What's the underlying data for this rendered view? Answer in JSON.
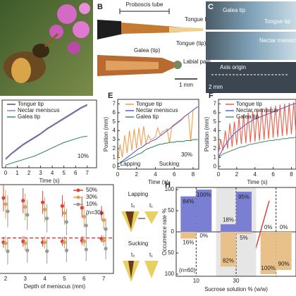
{
  "diagram_b": {
    "panel": "B",
    "proboscis": "Proboscis tube",
    "tongue_hairs": "Tongue hairs",
    "galea": "Galea (tip)",
    "tongue": "Tongue (tip)",
    "labial_palp": "Labial palp",
    "scale": "1 mm"
  },
  "images_c": {
    "panel": "C",
    "galea_tip": "Galea tip",
    "tongue_tip": "Tongue tip",
    "meniscus": "Nectar meniscus",
    "axis_origin": "Axis origin",
    "scale": "2 mm"
  },
  "diagram_g": {
    "lapping": "Lapping",
    "sucking": "Sucking",
    "t0": "t₀",
    "t1": "t₁"
  },
  "chart_data": [
    {
      "type": "line",
      "xlabel": "Time (s)",
      "annotations": [
        "10%"
      ],
      "x": [
        0,
        0.5,
        1,
        1.5,
        2,
        2.5,
        3,
        3.5,
        4,
        4.5,
        5,
        5.5,
        6,
        6.5,
        7
      ],
      "xlim": [
        -0.3,
        7.8
      ],
      "xticks": [
        0,
        1,
        2,
        3,
        4,
        5,
        6,
        7
      ],
      "ylim": [
        0,
        7.5
      ],
      "series": [
        {
          "name": "Tongue tip",
          "color": "#55506a",
          "values": [
            1.0,
            1.6,
            2.1,
            2.6,
            3.0,
            3.4,
            3.8,
            4.3,
            4.7,
            5.1,
            5.5,
            5.9,
            6.3,
            6.7,
            7.0
          ]
        },
        {
          "name": "Nectar meniscus",
          "color": "#8a7fd0",
          "values": [
            0.9,
            1.5,
            2.0,
            2.5,
            2.9,
            3.3,
            3.7,
            4.2,
            4.6,
            5.0,
            5.4,
            5.8,
            6.2,
            6.6,
            6.9
          ]
        },
        {
          "name": "Galea tip",
          "color": "#3a8a6a",
          "values": [
            0.3,
            0.5,
            0.7,
            0.9,
            1.1,
            1.3,
            1.6,
            1.9,
            2.2,
            2.5,
            2.8,
            3.0,
            3.2,
            3.4,
            3.5
          ]
        }
      ]
    },
    {
      "type": "line",
      "panel": "E",
      "xlabel": "Time (s)",
      "ylabel": "Position (mm)",
      "annotations": [
        "Lapping",
        "Sucking",
        "30%"
      ],
      "x": [
        0,
        0.25,
        0.5,
        0.75,
        1,
        1.25,
        1.5,
        1.75,
        2,
        2.25,
        2.5,
        2.75,
        3,
        3.25,
        3.5,
        3.75,
        4,
        4.25,
        4.5,
        4.75,
        5,
        5.25,
        5.5,
        5.75,
        6,
        6.25,
        6.5,
        6.75,
        7,
        7.25,
        7.5,
        7.75,
        8,
        8.25,
        8.5
      ],
      "xlim": [
        0,
        8.6
      ],
      "xticks": [
        0,
        2,
        4,
        6,
        8
      ],
      "ylim": [
        -0.3,
        7.5
      ],
      "yticks": [
        0,
        1,
        2,
        3,
        4,
        5,
        6,
        7
      ],
      "series": [
        {
          "name": "Tongue tip",
          "color": "#f0a050",
          "values": [
            0.5,
            2.5,
            1.0,
            3.5,
            1.5,
            4.0,
            1.8,
            4.2,
            2.0,
            4.3,
            2.3,
            4.5,
            2.5,
            3.5,
            3.0,
            3.1,
            3.3,
            4.3,
            3.5,
            3.9,
            4.0,
            4.2,
            2.6,
            4.5,
            4.7,
            4.9,
            5.1,
            5.3,
            5.5,
            5.7,
            5.9,
            2.8,
            6.3,
            6.5,
            6.7
          ]
        },
        {
          "name": "Nectar meniscus",
          "color": "#6a5acd",
          "values": [
            0.3,
            0.4,
            0.6,
            0.8,
            1.0,
            1.2,
            1.4,
            1.6,
            1.8,
            2.0,
            2.1,
            2.3,
            2.5,
            2.6,
            2.8,
            2.9,
            3.0,
            3.2,
            3.4,
            3.6,
            3.8,
            4.0,
            4.2,
            4.4,
            4.6,
            4.8,
            5.0,
            5.2,
            5.5,
            5.7,
            5.9,
            6.1,
            6.3,
            6.5,
            6.7
          ]
        },
        {
          "name": "Galea tip",
          "color": "#3a8a6a",
          "values": [
            0.2,
            0.4,
            0.5,
            0.6,
            0.7,
            0.9,
            1.0,
            1.1,
            1.3,
            1.4,
            1.5,
            1.7,
            1.9,
            2.0,
            2.1,
            2.2,
            2.3,
            2.4,
            2.5,
            2.5,
            2.6,
            2.6,
            2.7,
            2.7,
            2.7,
            2.8,
            2.8,
            2.8,
            2.8,
            2.9,
            2.9,
            2.9,
            3.0,
            3.0,
            3.0
          ]
        }
      ]
    },
    {
      "type": "line",
      "panel": "F",
      "xlabel": "Time (s)",
      "ylabel": "Position (mm)",
      "x": [
        0,
        0.25,
        0.5,
        0.75,
        1,
        1.25,
        1.5,
        1.75,
        2,
        2.25,
        2.5,
        2.75,
        3,
        3.25,
        3.5,
        3.75,
        4,
        4.25,
        4.5,
        4.75,
        5,
        5.25,
        5.5,
        5.75,
        6,
        6.25,
        6.5,
        6.75,
        7,
        7.25,
        7.5,
        7.75,
        8,
        8.25,
        8.5
      ],
      "xlim": [
        0,
        8.5
      ],
      "xticks": [
        0,
        2,
        4,
        6,
        8
      ],
      "ylim": [
        -0.3,
        7.5
      ],
      "yticks": [
        0,
        1,
        2,
        3,
        4,
        5,
        6,
        7
      ],
      "series": [
        {
          "name": "Tongue tip",
          "color": "#e8604c",
          "values": [
            1.5,
            3.0,
            1.8,
            4.0,
            2.0,
            4.8,
            2.2,
            5.0,
            2.4,
            5.5,
            2.5,
            5.8,
            2.6,
            6.0,
            2.7,
            6.2,
            2.8,
            6.3,
            2.9,
            6.5,
            3.0,
            6.6,
            3.1,
            6.7,
            3.2,
            6.8,
            3.3,
            6.9,
            3.4,
            7.0,
            3.5,
            7.1,
            3.6,
            7.2,
            3.7
          ]
        },
        {
          "name": "Nectar meniscus",
          "color": "#6a5acd",
          "values": [
            1.0,
            1.5,
            2.0,
            2.4,
            2.8,
            3.1,
            3.4,
            3.7,
            3.9,
            4.1,
            4.3,
            4.5,
            4.7,
            4.9,
            5.0,
            5.2,
            5.3,
            5.4,
            5.5,
            5.6,
            5.7,
            5.8,
            5.9,
            6.0,
            6.1,
            6.2,
            6.3,
            6.4,
            6.5,
            6.6,
            6.7,
            6.8,
            6.9,
            7.0,
            7.0
          ]
        },
        {
          "name": "Galea tip",
          "color": "#4a9a7a",
          "values": [
            1.0,
            1.2,
            1.4,
            1.5,
            1.6,
            1.7,
            1.8,
            1.9,
            2.0,
            2.1,
            2.2,
            2.2,
            2.3,
            2.4,
            2.5,
            2.5,
            2.6,
            2.6,
            2.7,
            2.7,
            2.8,
            2.8,
            2.9,
            2.9,
            2.9,
            3.0,
            3.0,
            3.0,
            3.1,
            3.1,
            3.1,
            3.2,
            3.2,
            3.2,
            3.3
          ]
        }
      ]
    },
    {
      "type": "errordots",
      "xlabel": "Depth of meniscus (mm)",
      "note": "(n=30)",
      "categories": [
        "2",
        "3",
        "4",
        "5",
        "6",
        "7"
      ],
      "ylim": [
        0,
        10
      ],
      "reference_line": 4,
      "series": [
        {
          "name": "50%",
          "color": "#d9453a",
          "values": [
            8.5,
            8.2,
            8.0,
            7.6,
            7.4,
            6.8
          ],
          "errors": [
            1.5,
            1.4,
            1.3,
            1.2,
            1.1,
            0.8
          ],
          "sucking_values": [
            3.5,
            3.6,
            3.5,
            3.6,
            3.7,
            3.9
          ],
          "sucking_errors": [
            0.6,
            0.6,
            0.5,
            0.5,
            0.5,
            0.4
          ]
        },
        {
          "name": "30%",
          "color": "#e0a050",
          "values": [
            7.8,
            7.5,
            7.2,
            6.8,
            6.4,
            6.0
          ],
          "errors": [
            1.6,
            1.5,
            1.4,
            1.3,
            1.2,
            1.0
          ],
          "sucking_values": [
            3.4,
            3.4,
            3.5,
            3.5,
            3.6,
            3.7
          ],
          "sucking_errors": [
            0.8,
            0.8,
            0.7,
            0.7,
            0.6,
            0.6
          ]
        },
        {
          "name": "10%",
          "color": "#999999",
          "values": [
            7.0,
            6.6,
            6.2,
            5.8,
            5.4,
            5.0
          ],
          "errors": [
            1.8,
            1.7,
            1.6,
            1.5,
            1.4,
            1.2
          ],
          "sucking_values": [
            2.5,
            2.6,
            2.5,
            2.6,
            2.7,
            2.8
          ],
          "sucking_errors": [
            1.5,
            1.4,
            1.4,
            1.3,
            1.3,
            1.2
          ]
        }
      ]
    },
    {
      "type": "bar",
      "panel": "H",
      "xlabel": "Sucrose solution % (w/w)",
      "ylabel": "Occurrence rate %",
      "note": "(n=60)",
      "categories": [
        "10",
        "30",
        null
      ],
      "ylim": [
        -105,
        105
      ],
      "yticks": [
        100,
        50,
        0,
        {
          "value": -50,
          "label": "50"
        },
        {
          "value": -100,
          "label": "100"
        }
      ],
      "series": [
        {
          "color": "#7b7fd4",
          "direction": "up",
          "values": [
            84,
            18,
            0
          ],
          "value_labels": [
            "84%",
            "18%",
            "0%"
          ]
        },
        {
          "color": "#7b7fd4",
          "direction": "up",
          "values": [
            100,
            95,
            0
          ],
          "value_labels": [
            "100%",
            "95%",
            "0%"
          ]
        },
        {
          "color": "#e8c08a",
          "direction": "down",
          "values": [
            16,
            82,
            100
          ],
          "value_labels": [
            "16%",
            "82%",
            "100%"
          ]
        },
        {
          "color": "#e8c08a",
          "direction": "down",
          "values": [
            0,
            5,
            90
          ],
          "value_labels": [
            "0%",
            "5%",
            "90%"
          ]
        }
      ]
    }
  ]
}
